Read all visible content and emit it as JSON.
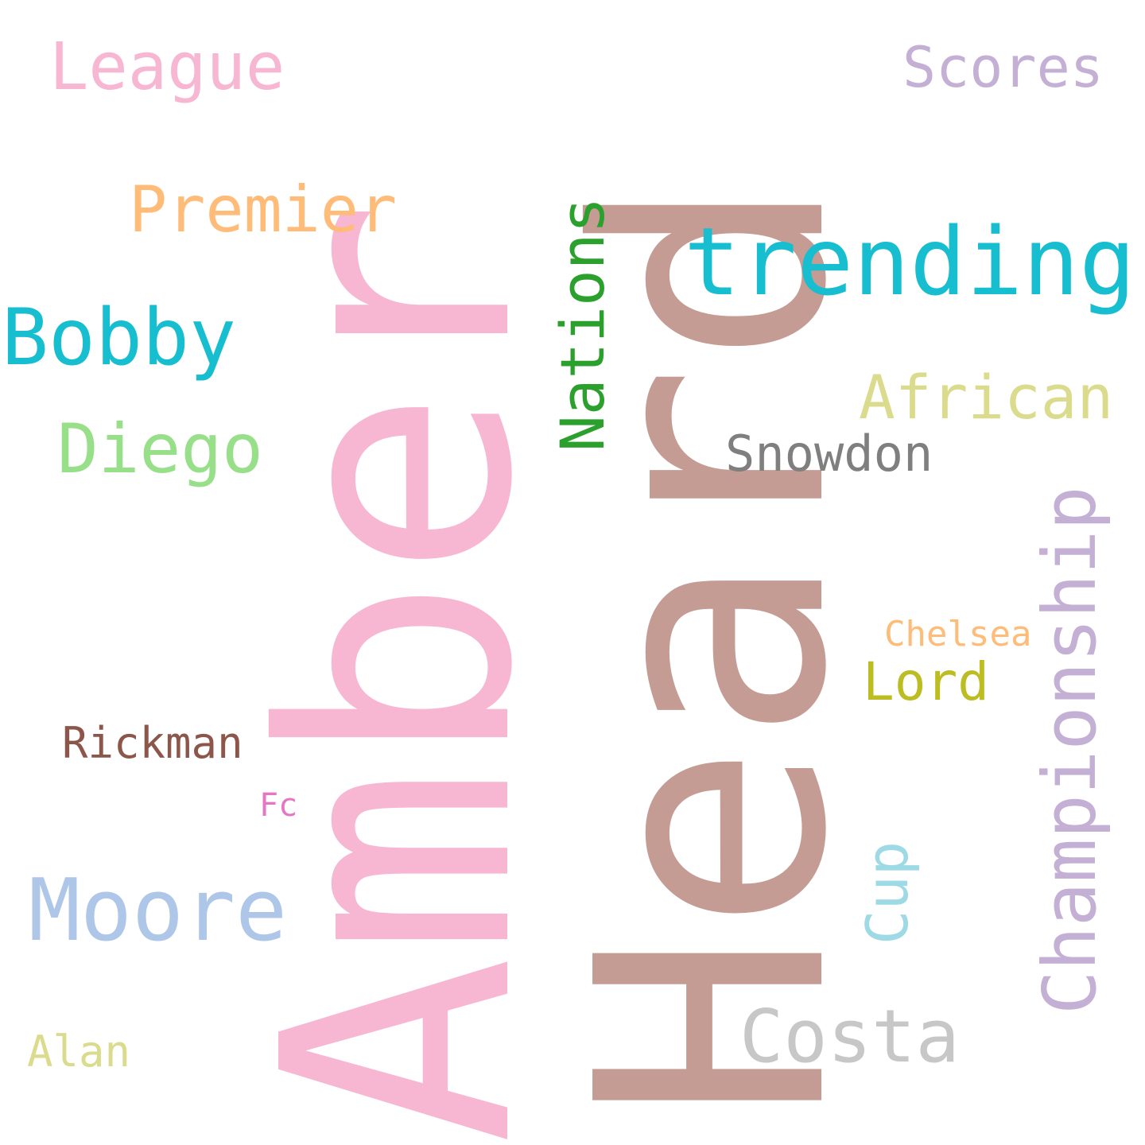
{
  "words": {
    "amber": "Amber",
    "heard": "Heard",
    "trending": "trending",
    "bobby": "Bobby",
    "league": "League",
    "scores": "Scores",
    "premier": "Premier",
    "diego": "Diego",
    "nations": "Nations",
    "african": "African",
    "snowdon": "Snowdon",
    "championship": "Championship",
    "chelsea": "Chelsea",
    "lord": "Lord",
    "rickman": "Rickman",
    "fc": "Fc",
    "cup": "Cup",
    "moore": "Moore",
    "costa": "Costa",
    "alan": "Alan"
  },
  "colors": {
    "amber": "#f7b6d2",
    "heard": "#c49c94",
    "trending": "#17becf",
    "bobby": "#17becf",
    "league": "#f7b6d2",
    "scores": "#c5b0d5",
    "premier": "#ffbb78",
    "diego": "#98df8a",
    "nations": "#2ca02c",
    "african": "#dbdb8d",
    "snowdon": "#7f7f7f",
    "championship": "#c5b0d5",
    "chelsea": "#ffbb78",
    "lord": "#bcbd22",
    "rickman": "#8c564b",
    "fc": "#e377c2",
    "cup": "#9edae5",
    "moore": "#aec7e8",
    "costa": "#c7c7c7",
    "alan": "#dbdb8d",
    "background": "#ffffff"
  }
}
